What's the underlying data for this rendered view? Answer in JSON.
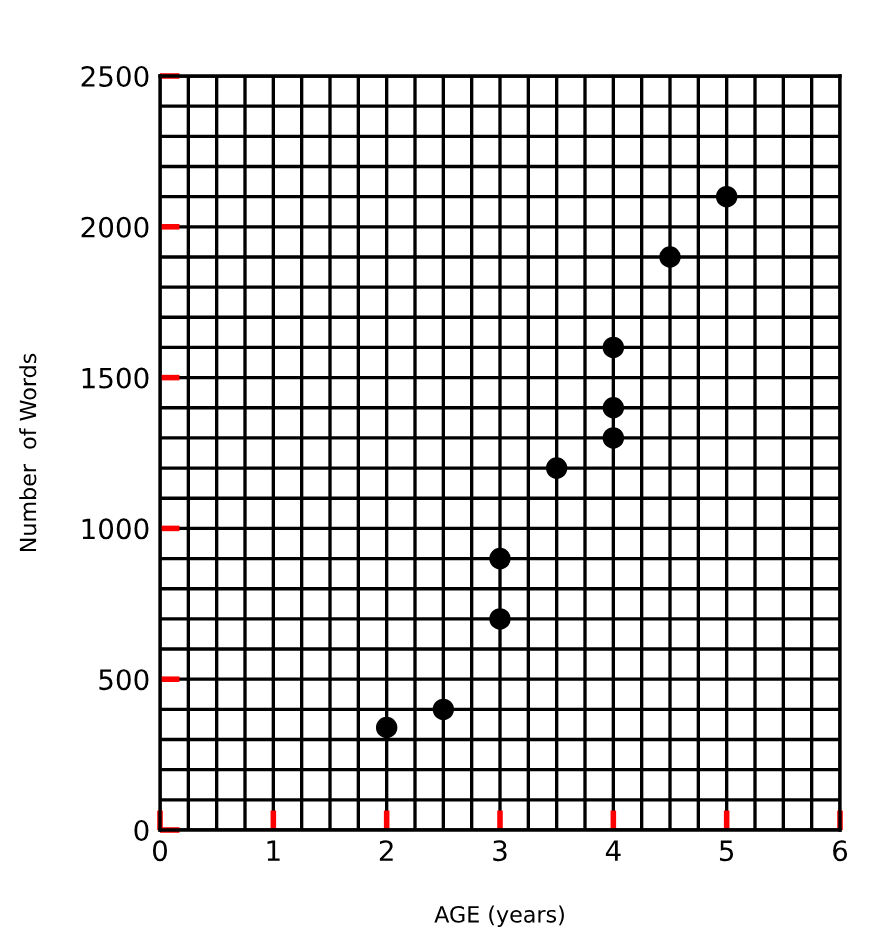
{
  "chart_data": {
    "type": "scatter",
    "xlabel": "AGE (years)",
    "ylabel": "Number  of Words",
    "x": [
      2,
      2.5,
      3,
      3,
      3.5,
      4,
      4,
      4,
      4.5,
      5
    ],
    "values": [
      340,
      400,
      700,
      900,
      1200,
      1300,
      1400,
      1600,
      1900,
      2100
    ],
    "color": "#000000",
    "marker": "circle",
    "grid": true,
    "xlim": [
      0,
      6
    ],
    "ylim": [
      0,
      2500
    ],
    "xticks": [
      0,
      {
        "value": 0.25,
        "label": null
      },
      {
        "value": 0.5,
        "label": null
      },
      {
        "value": 0.75,
        "label": null
      },
      1,
      {
        "value": 1.25,
        "label": null
      },
      {
        "value": 1.5,
        "label": null
      },
      {
        "value": 1.75,
        "label": null
      },
      2,
      {
        "value": 2.25,
        "label": null
      },
      {
        "value": 2.5,
        "label": null
      },
      {
        "value": 2.75,
        "label": null
      },
      3,
      {
        "value": 3.25,
        "label": null
      },
      {
        "value": 3.5,
        "label": null
      },
      {
        "value": 3.75,
        "label": null
      },
      4,
      {
        "value": 4.25,
        "label": null
      },
      {
        "value": 4.5,
        "label": null
      },
      {
        "value": 4.75,
        "label": null
      },
      5,
      {
        "value": 5.25,
        "label": null
      },
      {
        "value": 5.5,
        "label": null
      },
      {
        "value": 5.75,
        "label": null
      },
      6
    ],
    "yticks": [
      0,
      {
        "value": 100,
        "label": null
      },
      {
        "value": 200,
        "label": null
      },
      {
        "value": 300,
        "label": null
      },
      {
        "value": 400,
        "label": null
      },
      500,
      {
        "value": 600,
        "label": null
      },
      {
        "value": 700,
        "label": null
      },
      {
        "value": 800,
        "label": null
      },
      {
        "value": 900,
        "label": null
      },
      1000,
      {
        "value": 1100,
        "label": null
      },
      {
        "value": 1200,
        "label": null
      },
      {
        "value": 1300,
        "label": null
      },
      {
        "value": 1400,
        "label": null
      },
      1500,
      {
        "value": 1600,
        "label": null
      },
      {
        "value": 1700,
        "label": null
      },
      {
        "value": 1800,
        "label": null
      },
      {
        "value": 1900,
        "label": null
      },
      2000,
      {
        "value": 2100,
        "label": null
      },
      {
        "value": 2200,
        "label": null
      },
      {
        "value": 2300,
        "label": null
      },
      {
        "value": 2400,
        "label": null
      },
      2500
    ]
  }
}
